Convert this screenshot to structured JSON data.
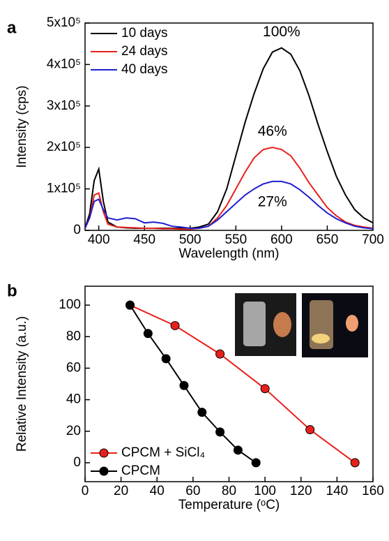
{
  "chart_data": [
    {
      "type": "line",
      "label": "a",
      "xlabel": "Wavelength (nm)",
      "ylabel": "Intensity (cps)",
      "x": [
        385,
        390,
        395,
        400,
        405,
        410,
        420,
        430,
        440,
        450,
        460,
        470,
        480,
        490,
        500,
        510,
        520,
        530,
        540,
        550,
        560,
        570,
        580,
        590,
        600,
        610,
        620,
        630,
        640,
        650,
        660,
        670,
        680,
        690,
        700
      ],
      "series": [
        {
          "name": "10 days",
          "color": "#000000",
          "annotation": "100%",
          "values": [
            5000,
            40000,
            120000,
            148000,
            70000,
            20000,
            8000,
            6000,
            5000,
            5000,
            5000,
            5000,
            5000,
            5000,
            5000,
            8000,
            15000,
            45000,
            100000,
            180000,
            260000,
            330000,
            390000,
            430000,
            440000,
            425000,
            385000,
            325000,
            255000,
            190000,
            130000,
            85000,
            50000,
            30000,
            18000
          ]
        },
        {
          "name": "24 days",
          "color": "#e8201c",
          "annotation": "46%",
          "values": [
            5000,
            30000,
            85000,
            90000,
            45000,
            15000,
            8000,
            7000,
            6000,
            5000,
            5000,
            4000,
            4000,
            3000,
            3000,
            5000,
            10000,
            30000,
            60000,
            100000,
            140000,
            175000,
            195000,
            200000,
            195000,
            180000,
            150000,
            115000,
            85000,
            55000,
            35000,
            20000,
            12000,
            8000,
            5000
          ]
        },
        {
          "name": "40 days",
          "color": "#1f1fd0",
          "annotation": "27%",
          "values": [
            5000,
            30000,
            70000,
            75000,
            50000,
            30000,
            25000,
            30000,
            28000,
            18000,
            20000,
            17000,
            10000,
            8000,
            5000,
            5000,
            10000,
            25000,
            45000,
            65000,
            85000,
            100000,
            112000,
            118000,
            118000,
            112000,
            98000,
            80000,
            60000,
            42000,
            28000,
            18000,
            10000,
            6000,
            4000
          ]
        }
      ],
      "xlim": [
        385,
        700
      ],
      "xticks": [
        400,
        450,
        500,
        550,
        600,
        650,
        700
      ],
      "ylim": [
        0,
        500000
      ],
      "yticks": [
        0,
        {
          "value": 100000,
          "label": "1x10⁵"
        },
        {
          "value": 200000,
          "label": "2x10⁵"
        },
        {
          "value": 300000,
          "label": "3x10⁵"
        },
        {
          "value": 400000,
          "label": "4x10⁵"
        },
        {
          "value": 500000,
          "label": "5x10⁵"
        }
      ],
      "legend": "upper left",
      "markers": false
    },
    {
      "type": "line",
      "label": "b",
      "xlabel": "Temperature (ᵒC)",
      "ylabel": "Relative Intensity (a.u.)",
      "series": [
        {
          "name": "CPCM + SiCl₄",
          "color": "#e8201c",
          "x": [
            25,
            50,
            75,
            100,
            125,
            150
          ],
          "values": [
            100,
            87,
            69,
            47,
            21,
            0
          ]
        },
        {
          "name": "CPCM",
          "color": "#000000",
          "x": [
            25,
            35,
            45,
            55,
            65,
            75,
            85,
            95
          ],
          "values": [
            100,
            82,
            66,
            49,
            32,
            19.5,
            8,
            0
          ]
        }
      ],
      "xlim": [
        0,
        160
      ],
      "xticks": [
        0,
        20,
        40,
        60,
        80,
        100,
        120,
        140,
        160
      ],
      "ylim": [
        -12,
        112
      ],
      "yticks": [
        0,
        20,
        40,
        60,
        80,
        100
      ],
      "legend": "lower left",
      "markers": true
    }
  ]
}
